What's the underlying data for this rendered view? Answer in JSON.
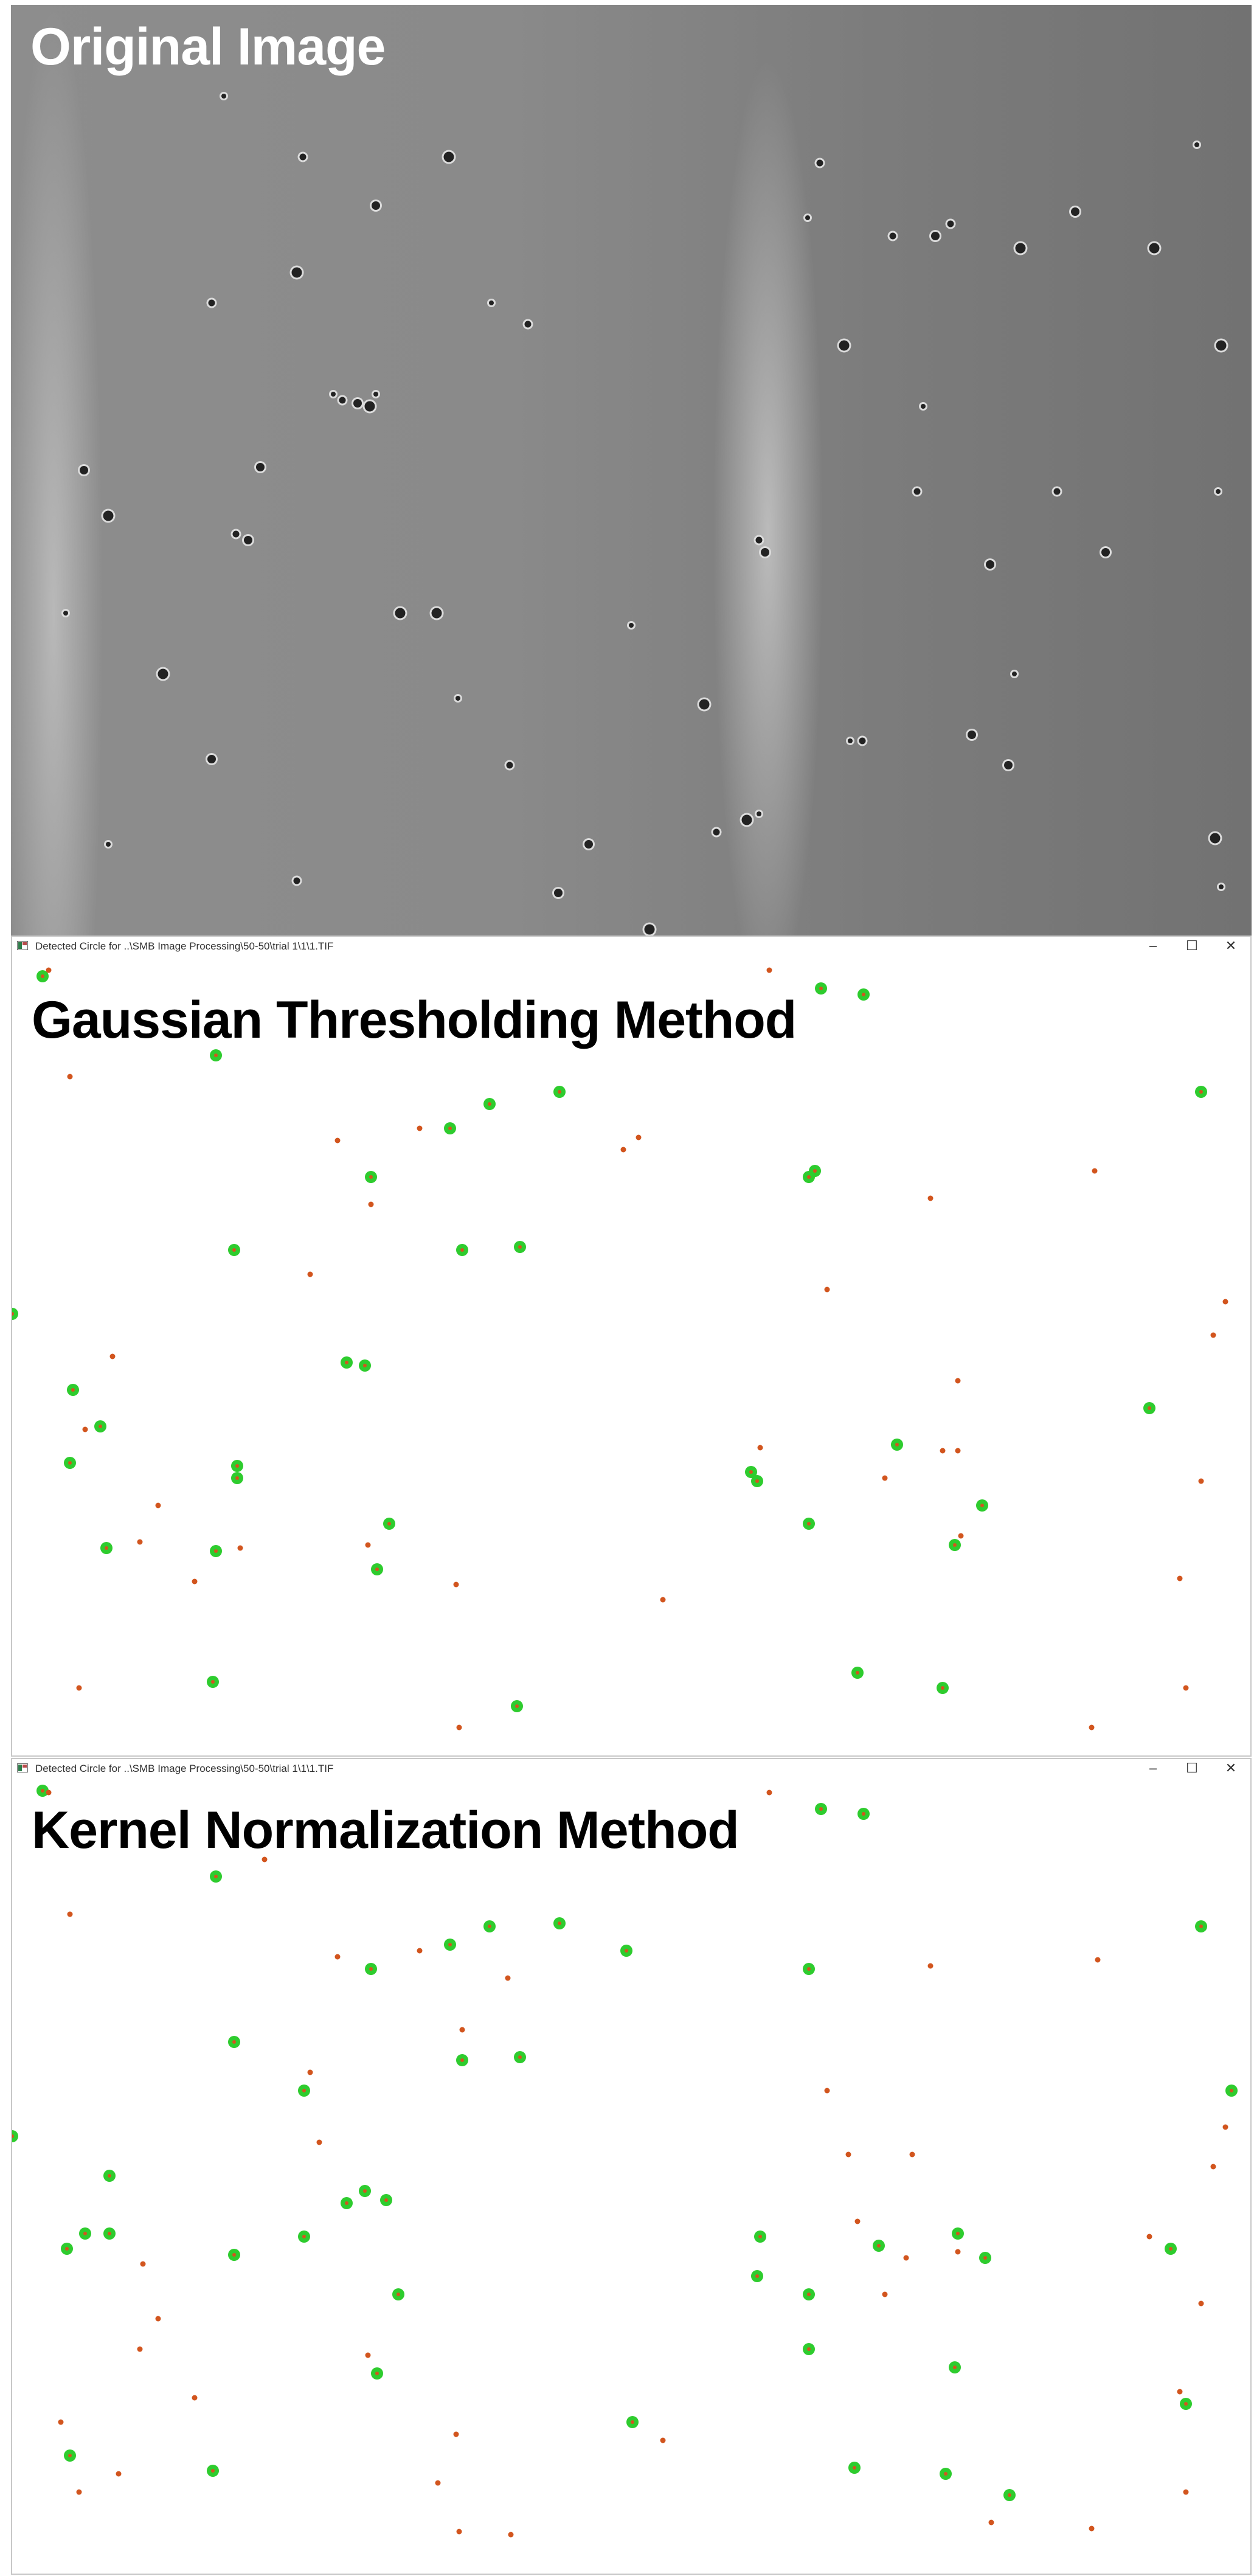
{
  "panels": {
    "original": {
      "label": "Original Image"
    },
    "gaussian": {
      "window_title": "Detected Circle for ..\\SMB Image Processing\\50-50\\trial 1\\1\\1.TIF",
      "method_label": "Gaussian Thresholding Method"
    },
    "kernel": {
      "window_title": "Detected Circle for ..\\SMB Image Processing\\50-50\\trial 1\\1\\1.TIF",
      "method_label": "Kernel Normalization Method"
    }
  },
  "window_controls": {
    "minimize": "–",
    "maximize": "☐",
    "close": "✕"
  },
  "colors": {
    "detection_fill": "#2ecc2e",
    "detection_center": "#d2551e",
    "center_marker": "#d2551e"
  }
}
